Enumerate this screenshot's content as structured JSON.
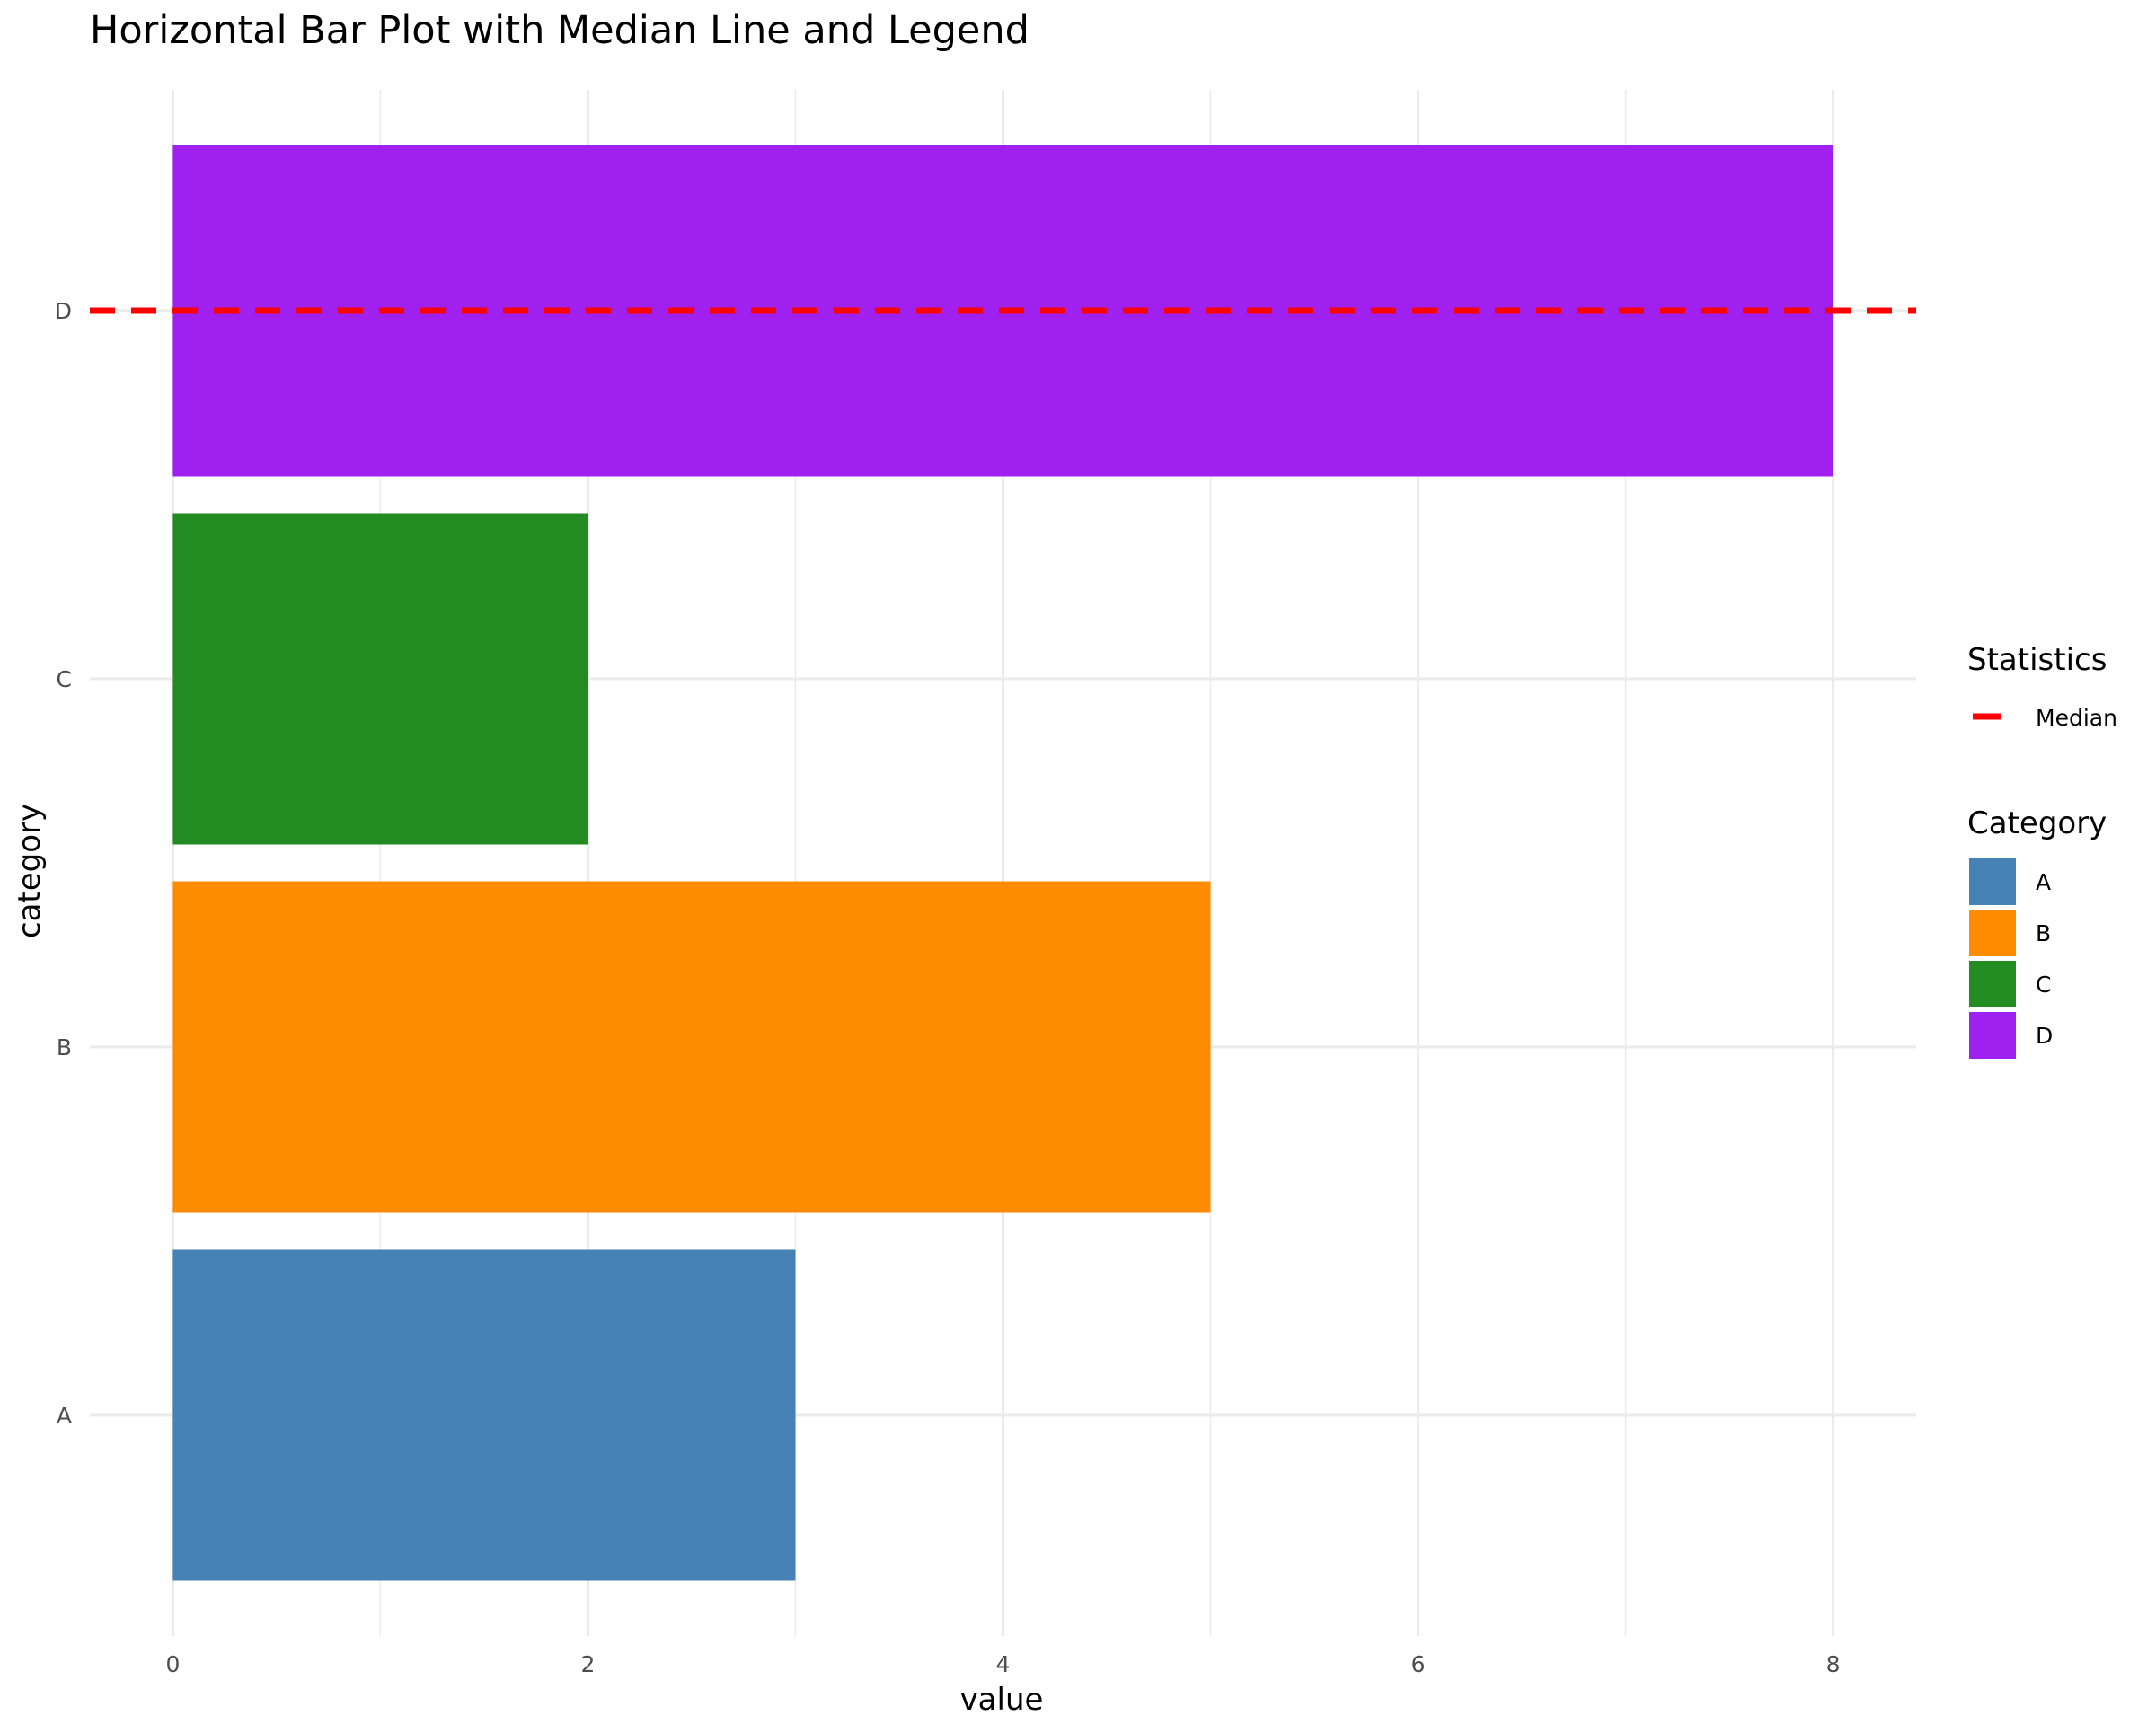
{
  "chart_data": {
    "type": "bar",
    "orientation": "horizontal",
    "title": "Horizontal Bar Plot with Median Line and Legend",
    "xlabel": "value",
    "ylabel": "category",
    "categories": [
      "A",
      "B",
      "C",
      "D"
    ],
    "values": [
      3,
      5,
      2,
      8
    ],
    "colors": [
      "#4682B4",
      "#FF8C00",
      "#228B22",
      "#A020F0"
    ],
    "xlim": [
      -0.4,
      8.4
    ],
    "xticks": [
      0,
      2,
      4,
      6,
      8
    ],
    "grid": true,
    "median_line": {
      "category": "D",
      "color": "#FF0000",
      "style": "dashed"
    },
    "legend": {
      "placement": "right",
      "statistics": {
        "title": "Statistics",
        "items": [
          {
            "label": "Median",
            "color": "#FF0000"
          }
        ]
      },
      "category": {
        "title": "Category",
        "items": [
          {
            "label": "A",
            "color": "#4682B4"
          },
          {
            "label": "B",
            "color": "#FF8C00"
          },
          {
            "label": "C",
            "color": "#228B22"
          },
          {
            "label": "D",
            "color": "#A020F0"
          }
        ]
      }
    }
  }
}
